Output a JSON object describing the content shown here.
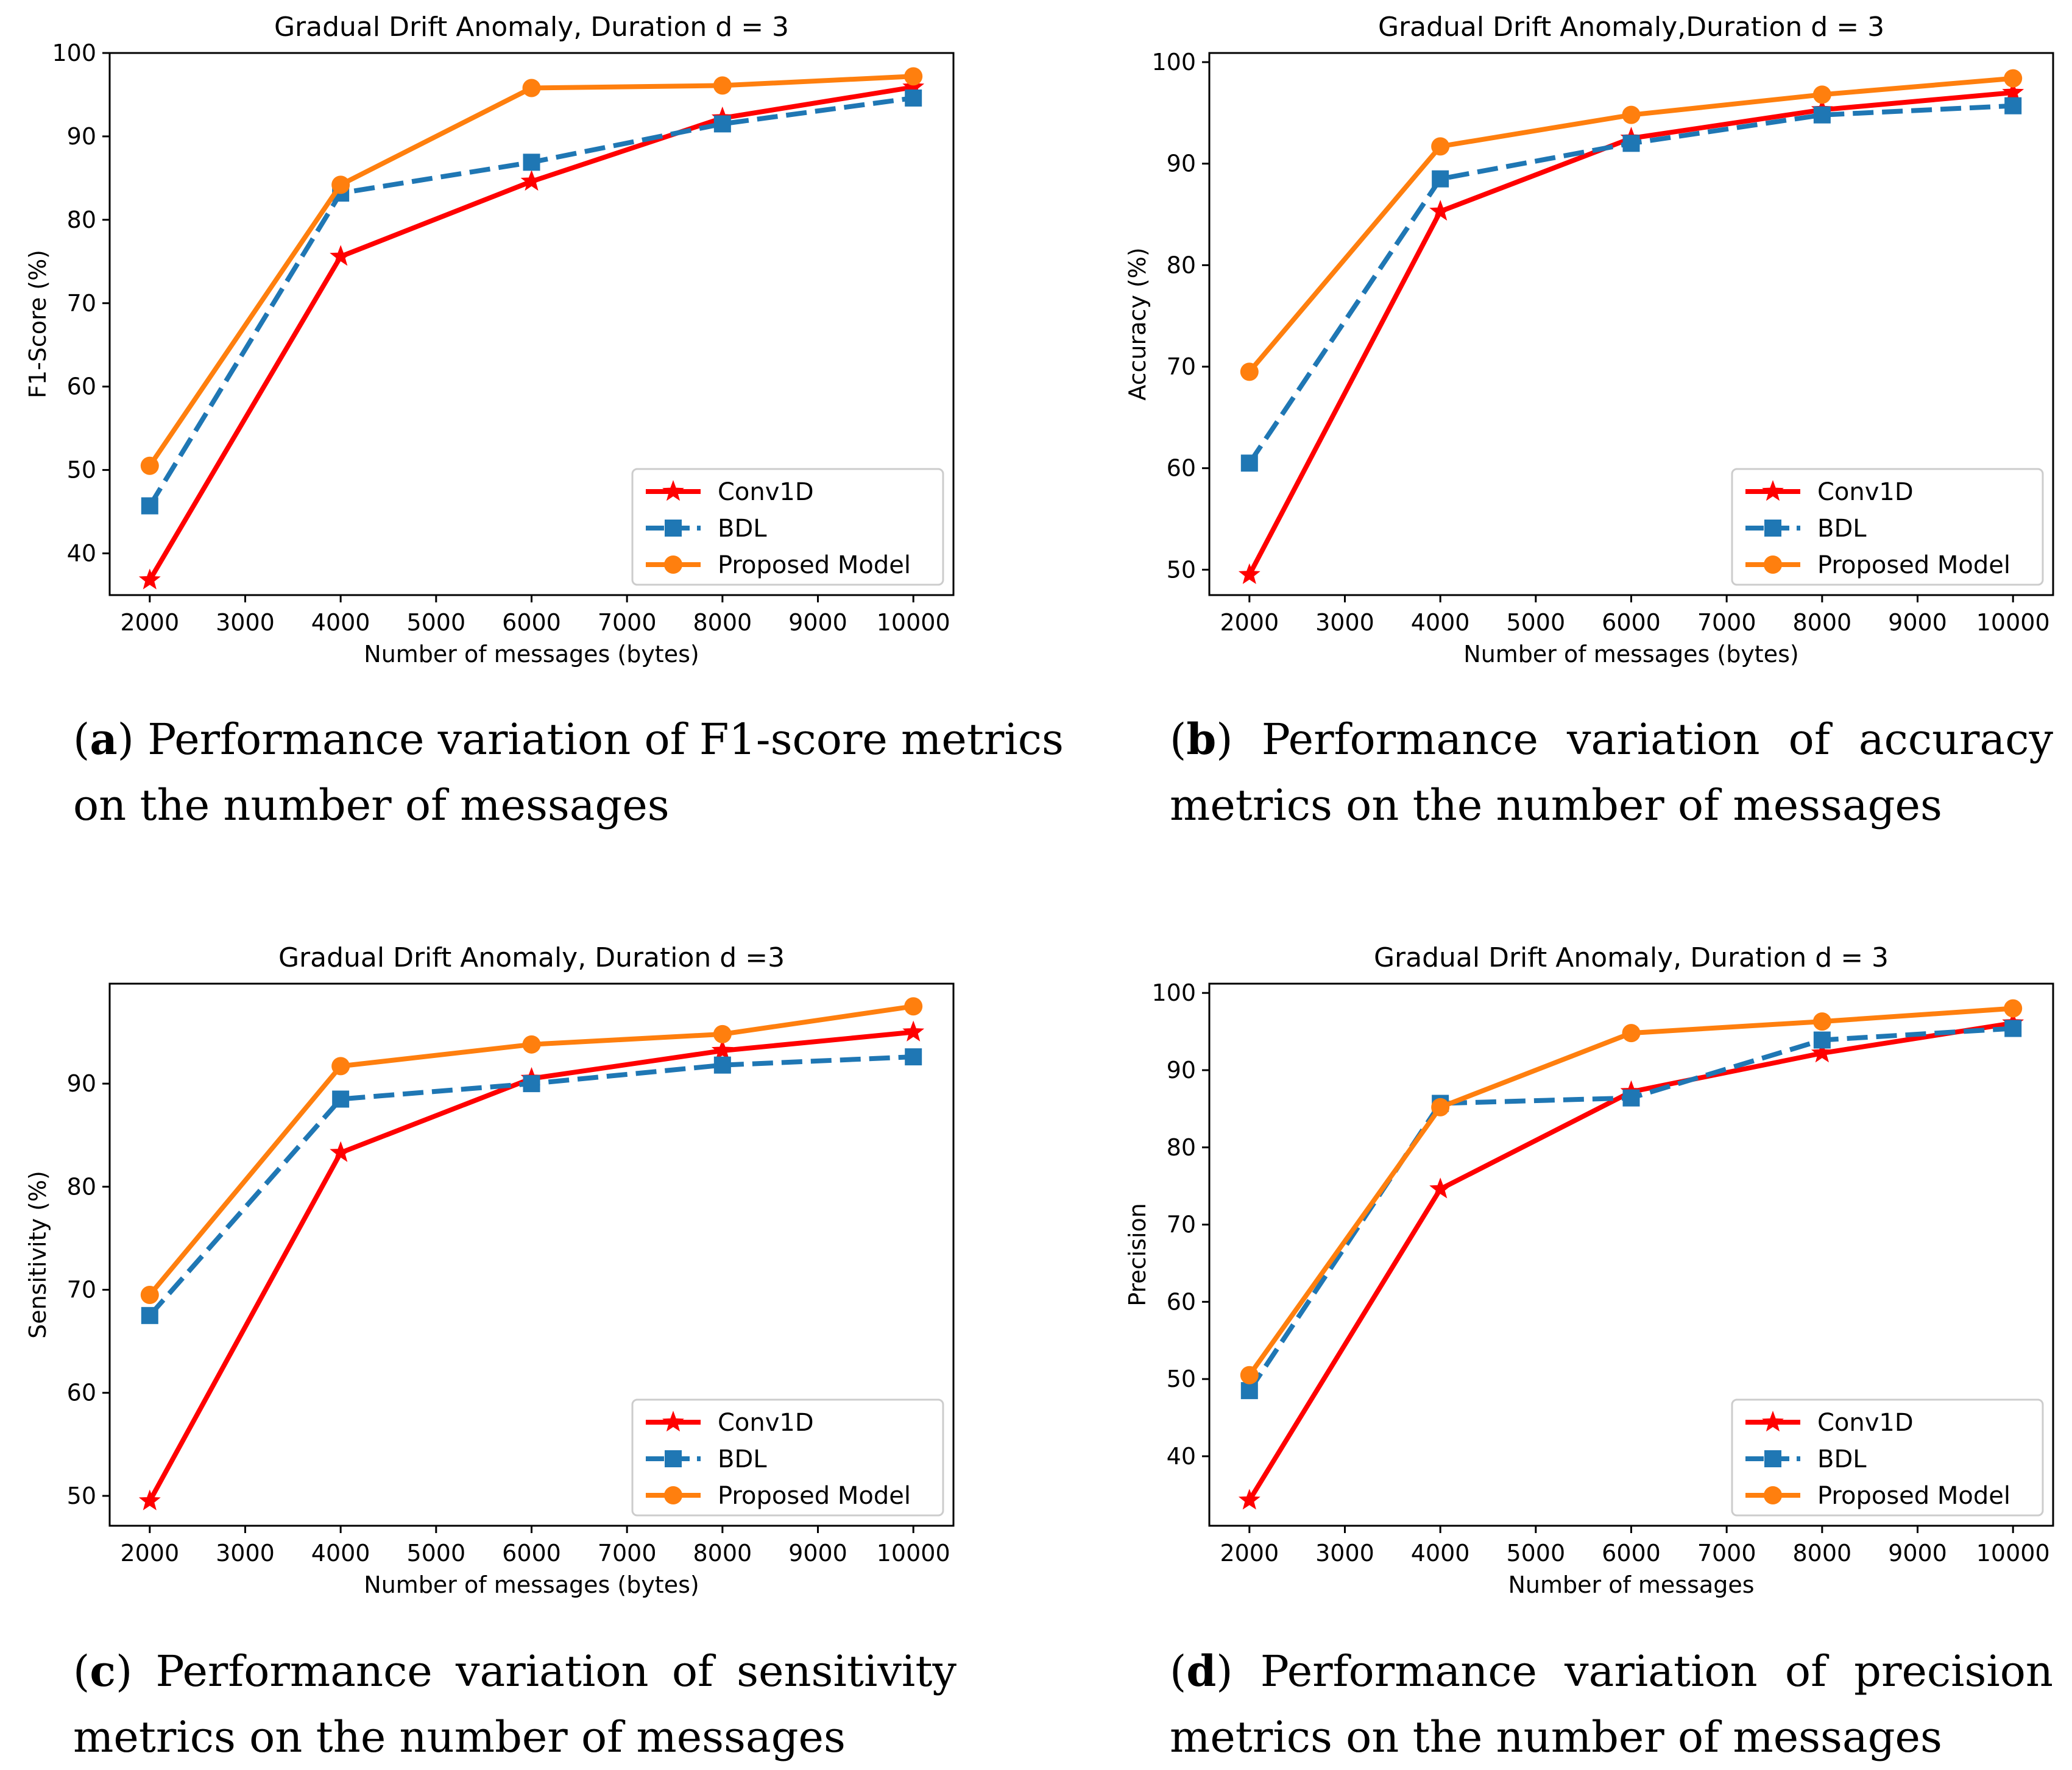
{
  "colors": {
    "conv1d": "#ff0000",
    "bdl": "#1f77b4",
    "proposed": "#ff7f0e"
  },
  "legend": [
    "Conv1D",
    "BDL",
    "Proposed Model"
  ],
  "chart_data": [
    {
      "type": "line",
      "id": "a",
      "title": "Gradual Drift Anomaly, Duration d = 3",
      "xlabel": "Number of messages (bytes)",
      "ylabel": "F1-Score (%)",
      "x": [
        2000,
        4000,
        6000,
        8000,
        10000
      ],
      "xticks": [
        2000,
        3000,
        4000,
        5000,
        6000,
        7000,
        8000,
        9000,
        10000
      ],
      "xlim": [
        1580,
        10420
      ],
      "yticks": [
        40,
        50,
        60,
        70,
        80,
        90,
        100
      ],
      "ylim": [
        35,
        100
      ],
      "legend_position": "lower-right",
      "series": [
        {
          "name": "Conv1D",
          "values": [
            36.8,
            75.6,
            84.6,
            92.2,
            95.9
          ]
        },
        {
          "name": "BDL",
          "values": [
            45.7,
            83.2,
            86.9,
            91.5,
            94.6
          ]
        },
        {
          "name": "Proposed Model",
          "values": [
            50.5,
            84.2,
            95.8,
            96.1,
            97.2
          ]
        }
      ]
    },
    {
      "type": "line",
      "id": "b",
      "title": "Gradual Drift Anomaly,Duration d = 3",
      "xlabel": "Number of messages (bytes)",
      "ylabel": "Accuracy (%)",
      "x": [
        2000,
        4000,
        6000,
        8000,
        10000
      ],
      "xticks": [
        2000,
        3000,
        4000,
        5000,
        6000,
        7000,
        8000,
        9000,
        10000
      ],
      "xlim": [
        1580,
        10420
      ],
      "yticks": [
        50,
        60,
        70,
        80,
        90,
        100
      ],
      "ylim": [
        47.5,
        100.9
      ],
      "legend_position": "lower-right",
      "series": [
        {
          "name": "Conv1D",
          "values": [
            49.5,
            85.3,
            92.5,
            95.3,
            97.0
          ]
        },
        {
          "name": "BDL",
          "values": [
            60.5,
            88.5,
            92.0,
            94.8,
            95.7
          ]
        },
        {
          "name": "Proposed Model",
          "values": [
            69.5,
            91.7,
            94.8,
            96.8,
            98.4
          ]
        }
      ]
    },
    {
      "type": "line",
      "id": "c",
      "title": "Gradual Drift Anomaly, Duration d =3",
      "xlabel": "Number of messages (bytes)",
      "ylabel": "Sensitivity (%)",
      "x": [
        2000,
        4000,
        6000,
        8000,
        10000
      ],
      "xticks": [
        2000,
        3000,
        4000,
        5000,
        6000,
        7000,
        8000,
        9000,
        10000
      ],
      "xlim": [
        1580,
        10420
      ],
      "yticks": [
        50,
        60,
        70,
        80,
        90
      ],
      "ylim": [
        47.1,
        99.7
      ],
      "legend_position": "lower-right",
      "series": [
        {
          "name": "Conv1D",
          "values": [
            49.5,
            83.3,
            90.5,
            93.2,
            95.0
          ]
        },
        {
          "name": "BDL",
          "values": [
            67.5,
            88.5,
            90.0,
            91.8,
            92.6
          ]
        },
        {
          "name": "Proposed Model",
          "values": [
            69.5,
            91.7,
            93.8,
            94.8,
            97.5
          ]
        }
      ]
    },
    {
      "type": "line",
      "id": "d",
      "title": "Gradual Drift Anomaly, Duration d = 3",
      "xlabel": "Number of messages",
      "ylabel": "Precision",
      "x": [
        2000,
        4000,
        6000,
        8000,
        10000
      ],
      "xticks": [
        2000,
        3000,
        4000,
        5000,
        6000,
        7000,
        8000,
        9000,
        10000
      ],
      "xlim": [
        1580,
        10420
      ],
      "yticks": [
        40,
        50,
        60,
        70,
        80,
        90,
        100
      ],
      "ylim": [
        31.0,
        101.2
      ],
      "legend_position": "lower-right",
      "series": [
        {
          "name": "Conv1D",
          "values": [
            34.3,
            74.6,
            87.2,
            92.2,
            96.1
          ]
        },
        {
          "name": "BDL",
          "values": [
            48.5,
            85.7,
            86.4,
            93.9,
            95.4
          ]
        },
        {
          "name": "Proposed Model",
          "values": [
            50.5,
            85.2,
            94.8,
            96.3,
            98.0
          ]
        }
      ]
    }
  ],
  "captions": [
    {
      "letter": "a",
      "lines": [
        "Performance variation of F1-score metrics",
        "on the number of messages"
      ]
    },
    {
      "letter": "b",
      "lines": [
        "Performance variation of accuracy",
        "metrics on the number of messages"
      ]
    },
    {
      "letter": "c",
      "lines": [
        "Performance variation of sensitivity",
        "metrics on the number of messages"
      ]
    },
    {
      "letter": "d",
      "lines": [
        "Performance variation of precision",
        "metrics on the number of messages"
      ]
    }
  ]
}
